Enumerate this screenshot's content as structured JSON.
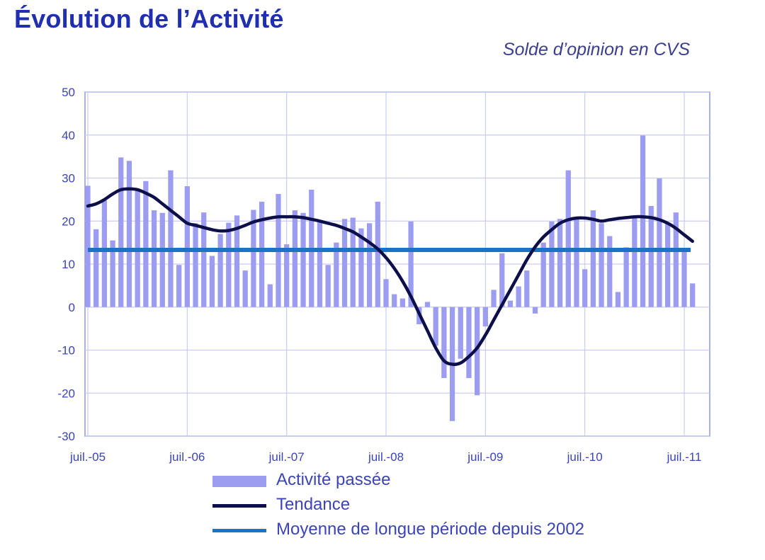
{
  "chart_data": {
    "type": "bar",
    "title": "Évolution de l’Activité",
    "subtitle": "Solde d’opinion en CVS",
    "ylim": [
      -30,
      50
    ],
    "yticks": [
      50,
      40,
      30,
      20,
      10,
      0,
      -10,
      -20,
      -30
    ],
    "xticks": [
      "juil.-05",
      "juil.-06",
      "juil.-07",
      "juil.-08",
      "juil.-09",
      "juil.-10",
      "juil.-11"
    ],
    "x_start": "juil.-05",
    "series": [
      {
        "name": "Activité passée",
        "kind": "bar",
        "color": "#9c9cf0",
        "values": [
          28.2,
          18.1,
          24.8,
          15.5,
          34.8,
          34.0,
          27.3,
          29.3,
          22.5,
          21.9,
          31.8,
          9.8,
          28.1,
          19.5,
          22.0,
          11.9,
          17.0,
          19.6,
          21.3,
          8.5,
          22.6,
          24.5,
          5.3,
          26.3,
          14.6,
          22.5,
          21.9,
          27.3,
          20.2,
          9.8,
          15.0,
          20.5,
          20.8,
          18.3,
          19.5,
          24.5,
          6.5,
          3.0,
          2.0,
          19.9,
          -4.0,
          1.2,
          -9.0,
          -16.5,
          -26.5,
          -12.0,
          -16.5,
          -20.5,
          -4.5,
          4.0,
          12.5,
          1.5,
          4.8,
          8.5,
          -1.5,
          15.0,
          19.9,
          20.5,
          31.8,
          20.5,
          8.8,
          22.5,
          19.5,
          16.5,
          3.5,
          13.9,
          20.8,
          39.9,
          23.5,
          29.9,
          19.5,
          22.0,
          13.0,
          5.5
        ]
      },
      {
        "name": "Tendance",
        "kind": "line",
        "color": "#0d0f4a",
        "values": [
          23.5,
          24.0,
          25.0,
          26.3,
          27.3,
          27.5,
          27.3,
          26.5,
          25.5,
          24.0,
          22.5,
          21.0,
          19.5,
          19.0,
          18.5,
          18.0,
          17.7,
          17.8,
          18.3,
          19.0,
          19.8,
          20.3,
          20.7,
          21.0,
          21.0,
          21.0,
          20.8,
          20.4,
          20.0,
          19.5,
          19.0,
          18.3,
          17.5,
          16.3,
          15.0,
          13.5,
          11.5,
          9.0,
          6.0,
          2.5,
          -1.5,
          -5.5,
          -9.5,
          -12.5,
          -13.3,
          -13.0,
          -11.5,
          -9.5,
          -6.5,
          -3.0,
          0.5,
          4.0,
          7.5,
          11.0,
          14.0,
          16.3,
          18.0,
          19.5,
          20.3,
          20.7,
          20.7,
          20.4,
          20.0,
          20.3,
          20.6,
          20.8,
          21.0,
          21.0,
          20.8,
          20.3,
          19.5,
          18.3,
          16.8,
          15.3
        ]
      },
      {
        "name": "Moyenne de longue période depuis 2002",
        "kind": "hline",
        "color": "#1a73c4",
        "value": 13.3
      }
    ]
  }
}
